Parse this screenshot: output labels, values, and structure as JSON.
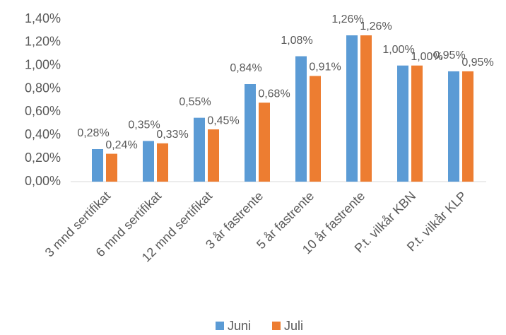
{
  "chart_data": {
    "type": "bar",
    "categories": [
      "3 mnd sertifikat",
      "6 mnd sertifikat",
      "12 mnd sertifikat",
      "3 år fastrente",
      "5 år fastrente",
      "10 år fastrente",
      "P.t. vilkår KBN",
      "P.t. vilkår KLP"
    ],
    "series": [
      {
        "name": "Juni",
        "color": "#5b9bd5",
        "values": [
          0.28,
          0.35,
          0.55,
          0.84,
          1.08,
          1.26,
          1.0,
          0.95
        ],
        "value_labels": [
          "0,28%",
          "0,35%",
          "0,55%",
          "0,84%",
          "1,08%",
          "1,26%",
          "1,00%",
          "0,95%"
        ]
      },
      {
        "name": "Juli",
        "color": "#ed7d31",
        "values": [
          0.24,
          0.33,
          0.45,
          0.68,
          0.91,
          1.26,
          1.0,
          0.95
        ],
        "value_labels": [
          "0,24%",
          "0,33%",
          "0,45%",
          "0,68%",
          "0,91%",
          "1,26%",
          "1,00%",
          "0,95%"
        ]
      }
    ],
    "ylim": [
      0,
      1.4
    ],
    "yticks": [
      {
        "value": 0,
        "label": "0,00%"
      },
      {
        "value": 0.2,
        "label": "0,20%"
      },
      {
        "value": 0.4,
        "label": "0,40%"
      },
      {
        "value": 0.6,
        "label": "0,60%"
      },
      {
        "value": 0.8,
        "label": "0,80%"
      },
      {
        "value": 1.0,
        "label": "1,00%"
      },
      {
        "value": 1.2,
        "label": "1,20%"
      },
      {
        "value": 1.4,
        "label": "1,40%"
      }
    ],
    "grid": false,
    "legend": "bottom"
  }
}
